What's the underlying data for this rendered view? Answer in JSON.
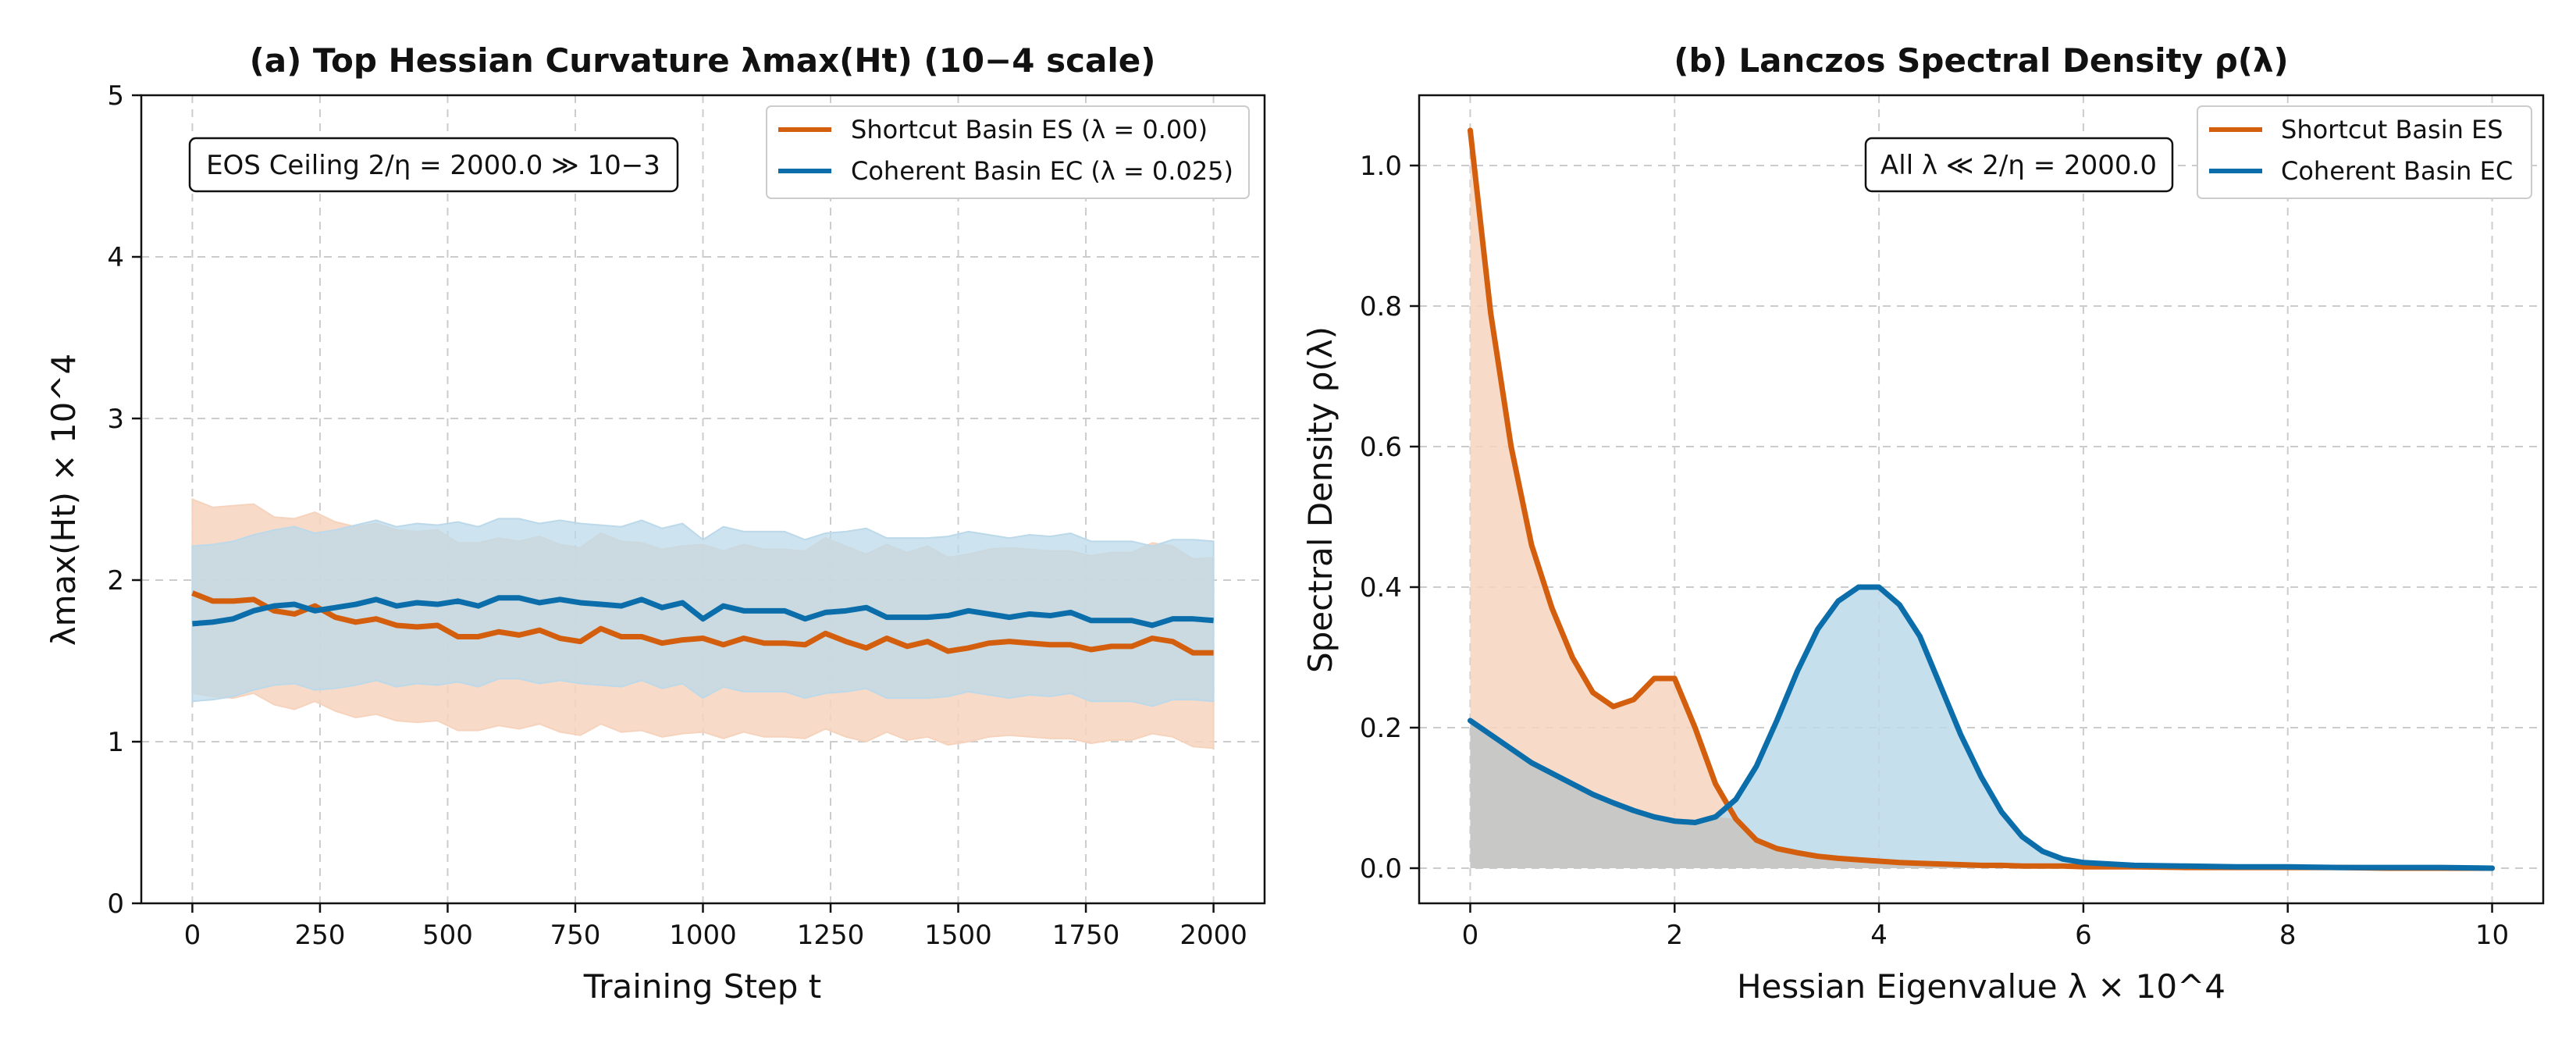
{
  "colors": {
    "shortcut": "#d35f0e",
    "coherent": "#0b6eaa",
    "shortcut_fill": "#f6d3bd",
    "coherent_fill": "#bcd9ea",
    "overlap_fill": "#c8c9c7",
    "grid": "#cccccc"
  },
  "chart_data": [
    {
      "type": "line",
      "title": "(a) Top Hessian Curvature λmax(Ht) (10−4 scale)",
      "xlabel": "Training Step t",
      "ylabel": "λmax(Ht) × 10^4",
      "xlim": [
        -100,
        2100
      ],
      "ylim": [
        0,
        5
      ],
      "xticks": [
        0,
        250,
        500,
        750,
        1000,
        1250,
        1500,
        1750,
        2000
      ],
      "yticks": [
        0,
        1,
        2,
        3,
        4,
        5
      ],
      "grid": true,
      "legend_position": "top-right",
      "annotation": "EOS Ceiling 2/η = 2000.0 ≫ 10−3",
      "x": [
        0,
        40,
        80,
        120,
        160,
        200,
        240,
        280,
        320,
        360,
        400,
        440,
        480,
        520,
        560,
        600,
        640,
        680,
        720,
        760,
        800,
        840,
        880,
        920,
        960,
        1000,
        1040,
        1080,
        1120,
        1160,
        1200,
        1240,
        1280,
        1320,
        1360,
        1400,
        1440,
        1480,
        1520,
        1560,
        1600,
        1640,
        1680,
        1720,
        1760,
        1800,
        1840,
        1880,
        1920,
        1960,
        2000
      ],
      "series": [
        {
          "name": "Shortcut Basin ES (λ = 0.00)",
          "values": [
            1.92,
            1.87,
            1.87,
            1.88,
            1.81,
            1.79,
            1.84,
            1.77,
            1.74,
            1.76,
            1.72,
            1.71,
            1.72,
            1.65,
            1.65,
            1.68,
            1.66,
            1.69,
            1.64,
            1.62,
            1.7,
            1.65,
            1.65,
            1.61,
            1.63,
            1.64,
            1.6,
            1.64,
            1.61,
            1.61,
            1.6,
            1.67,
            1.62,
            1.58,
            1.64,
            1.59,
            1.62,
            1.56,
            1.58,
            1.61,
            1.62,
            1.61,
            1.6,
            1.6,
            1.57,
            1.59,
            1.59,
            1.64,
            1.62,
            1.55,
            1.55
          ],
          "lower": [
            1.3,
            1.28,
            1.27,
            1.3,
            1.23,
            1.2,
            1.25,
            1.19,
            1.15,
            1.17,
            1.13,
            1.12,
            1.13,
            1.07,
            1.07,
            1.1,
            1.08,
            1.11,
            1.06,
            1.04,
            1.11,
            1.06,
            1.07,
            1.03,
            1.05,
            1.06,
            1.02,
            1.06,
            1.03,
            1.03,
            1.02,
            1.08,
            1.03,
            1.0,
            1.06,
            1.01,
            1.03,
            0.98,
            1.0,
            1.03,
            1.04,
            1.03,
            1.02,
            1.02,
            0.99,
            1.01,
            1.01,
            1.05,
            1.03,
            0.97,
            0.96
          ],
          "upper": [
            2.5,
            2.45,
            2.46,
            2.47,
            2.39,
            2.38,
            2.42,
            2.36,
            2.33,
            2.35,
            2.31,
            2.3,
            2.31,
            2.23,
            2.23,
            2.26,
            2.24,
            2.27,
            2.22,
            2.2,
            2.29,
            2.24,
            2.23,
            2.19,
            2.21,
            2.22,
            2.18,
            2.22,
            2.19,
            2.19,
            2.18,
            2.26,
            2.21,
            2.16,
            2.22,
            2.17,
            2.21,
            2.14,
            2.16,
            2.19,
            2.2,
            2.19,
            2.18,
            2.18,
            2.15,
            2.17,
            2.17,
            2.23,
            2.21,
            2.13,
            2.14
          ]
        },
        {
          "name": "Coherent Basin EC (λ = 0.025)",
          "values": [
            1.73,
            1.74,
            1.76,
            1.81,
            1.84,
            1.85,
            1.81,
            1.83,
            1.85,
            1.88,
            1.84,
            1.86,
            1.85,
            1.87,
            1.84,
            1.89,
            1.89,
            1.86,
            1.88,
            1.86,
            1.85,
            1.84,
            1.88,
            1.83,
            1.86,
            1.76,
            1.84,
            1.81,
            1.81,
            1.81,
            1.76,
            1.8,
            1.81,
            1.83,
            1.77,
            1.77,
            1.77,
            1.78,
            1.81,
            1.79,
            1.77,
            1.79,
            1.78,
            1.8,
            1.75,
            1.75,
            1.75,
            1.72,
            1.76,
            1.76,
            1.75
          ],
          "lower": [
            1.25,
            1.26,
            1.28,
            1.32,
            1.35,
            1.36,
            1.32,
            1.33,
            1.35,
            1.38,
            1.34,
            1.36,
            1.35,
            1.37,
            1.34,
            1.39,
            1.39,
            1.36,
            1.38,
            1.36,
            1.35,
            1.34,
            1.38,
            1.33,
            1.36,
            1.27,
            1.34,
            1.31,
            1.31,
            1.31,
            1.27,
            1.3,
            1.31,
            1.33,
            1.27,
            1.27,
            1.27,
            1.28,
            1.31,
            1.29,
            1.27,
            1.29,
            1.28,
            1.3,
            1.25,
            1.25,
            1.25,
            1.22,
            1.26,
            1.26,
            1.25
          ],
          "upper": [
            2.21,
            2.22,
            2.24,
            2.28,
            2.31,
            2.33,
            2.29,
            2.31,
            2.34,
            2.37,
            2.33,
            2.35,
            2.34,
            2.36,
            2.33,
            2.38,
            2.38,
            2.35,
            2.37,
            2.35,
            2.34,
            2.33,
            2.37,
            2.32,
            2.35,
            2.25,
            2.33,
            2.3,
            2.3,
            2.3,
            2.25,
            2.29,
            2.3,
            2.32,
            2.26,
            2.26,
            2.26,
            2.27,
            2.3,
            2.28,
            2.26,
            2.28,
            2.27,
            2.29,
            2.24,
            2.24,
            2.24,
            2.21,
            2.25,
            2.25,
            2.24
          ]
        }
      ]
    },
    {
      "type": "area",
      "title": "(b) Lanczos Spectral Density ρ(λ)",
      "xlabel": "Hessian Eigenvalue λ × 10^4",
      "ylabel": "Spectral Density ρ(λ)",
      "xlim": [
        -0.5,
        10.5
      ],
      "ylim": [
        -0.05,
        1.1
      ],
      "xticks": [
        0,
        2,
        4,
        6,
        8,
        10
      ],
      "yticks": [
        0.0,
        0.2,
        0.4,
        0.6,
        0.8,
        1.0
      ],
      "grid": true,
      "legend_position": "top-right",
      "annotation": "All λ ≪ 2/η = 2000.0",
      "x": [
        0,
        0.2,
        0.4,
        0.6,
        0.8,
        1.0,
        1.2,
        1.4,
        1.6,
        1.8,
        2.0,
        2.2,
        2.4,
        2.6,
        2.8,
        3.0,
        3.2,
        3.4,
        3.6,
        3.8,
        4.0,
        4.2,
        4.4,
        4.6,
        4.8,
        5.0,
        5.2,
        5.4,
        5.6,
        5.8,
        6.0,
        6.5,
        7.0,
        7.5,
        8.0,
        8.5,
        9.0,
        9.5,
        10.0
      ],
      "series": [
        {
          "name": "Shortcut Basin ES",
          "values": [
            1.05,
            0.79,
            0.6,
            0.46,
            0.37,
            0.3,
            0.25,
            0.23,
            0.24,
            0.27,
            0.27,
            0.2,
            0.12,
            0.07,
            0.04,
            0.028,
            0.022,
            0.017,
            0.014,
            0.012,
            0.01,
            0.008,
            0.007,
            0.006,
            0.005,
            0.004,
            0.004,
            0.003,
            0.003,
            0.003,
            0.002,
            0.002,
            0.001,
            0.001,
            0.001,
            0.001,
            0.0,
            0.0,
            0.0
          ]
        },
        {
          "name": "Coherent Basin EC",
          "values": [
            0.21,
            0.19,
            0.17,
            0.15,
            0.135,
            0.12,
            0.105,
            0.093,
            0.082,
            0.073,
            0.067,
            0.065,
            0.073,
            0.098,
            0.145,
            0.21,
            0.28,
            0.34,
            0.38,
            0.4,
            0.4,
            0.375,
            0.33,
            0.26,
            0.19,
            0.13,
            0.08,
            0.045,
            0.024,
            0.013,
            0.008,
            0.004,
            0.003,
            0.002,
            0.002,
            0.001,
            0.001,
            0.001,
            0.0
          ]
        }
      ]
    }
  ]
}
